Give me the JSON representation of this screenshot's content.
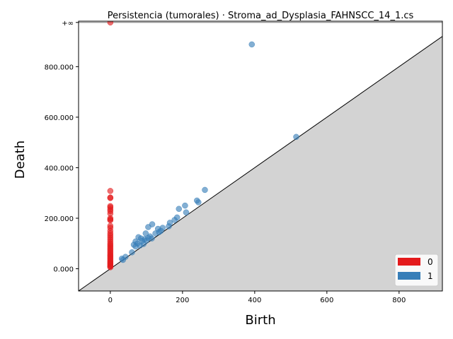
{
  "chart_data": {
    "type": "scatter",
    "title": "Persistencia (tumorales) · Stroma_ad_Dysplasia_FAHNSCC_14_1.cs",
    "xlabel": "Birth",
    "ylabel": "Death",
    "xlim": [
      -88,
      920
    ],
    "ylim": [
      -88,
      980
    ],
    "x_ticks": [
      {
        "value": 0,
        "label": "0"
      },
      {
        "value": 200,
        "label": "200"
      },
      {
        "value": 400,
        "label": "400"
      },
      {
        "value": 600,
        "label": "600"
      },
      {
        "value": 800,
        "label": "800"
      }
    ],
    "y_ticks": [
      {
        "value": 0,
        "label": "0.000"
      },
      {
        "value": 200,
        "label": "200.000"
      },
      {
        "value": 400,
        "label": "400.000"
      },
      {
        "value": 600,
        "label": "600.000"
      },
      {
        "value": 800,
        "label": "800.000"
      },
      {
        "value": 975,
        "label": "+∞"
      }
    ],
    "infinity_line_y": 975,
    "diagonal": true,
    "grid": false,
    "legend_position": "lower-right",
    "series": [
      {
        "name": "0",
        "color": "#e41a1c",
        "points": [
          [
            0,
            975
          ],
          [
            0,
            308
          ],
          [
            0,
            282
          ],
          [
            0,
            280
          ],
          [
            0,
            248
          ],
          [
            0,
            243
          ],
          [
            0,
            235
          ],
          [
            0,
            228
          ],
          [
            0,
            218
          ],
          [
            0,
            200
          ],
          [
            0,
            195
          ],
          [
            0,
            192
          ],
          [
            0,
            170
          ],
          [
            0,
            162
          ],
          [
            0,
            150
          ],
          [
            0,
            140
          ],
          [
            0,
            132
          ],
          [
            0,
            124
          ],
          [
            0,
            116
          ],
          [
            0,
            108
          ],
          [
            0,
            100
          ],
          [
            0,
            94
          ],
          [
            0,
            88
          ],
          [
            0,
            82
          ],
          [
            0,
            76
          ],
          [
            0,
            70
          ],
          [
            0,
            64
          ],
          [
            0,
            58
          ],
          [
            0,
            53
          ],
          [
            0,
            48
          ],
          [
            0,
            43
          ],
          [
            0,
            38
          ],
          [
            0,
            33
          ],
          [
            0,
            28
          ],
          [
            0,
            24
          ],
          [
            0,
            20
          ],
          [
            0,
            16
          ],
          [
            0,
            12
          ],
          [
            0,
            9
          ],
          [
            0,
            6
          ]
        ]
      },
      {
        "name": "1",
        "color": "#377eb8",
        "points": [
          [
            392,
            888
          ],
          [
            515,
            522
          ],
          [
            262,
            312
          ],
          [
            240,
            270
          ],
          [
            244,
            263
          ],
          [
            207,
            250
          ],
          [
            190,
            237
          ],
          [
            210,
            223
          ],
          [
            185,
            203
          ],
          [
            178,
            193
          ],
          [
            165,
            182
          ],
          [
            162,
            168
          ],
          [
            145,
            162
          ],
          [
            132,
            158
          ],
          [
            140,
            150
          ],
          [
            135,
            145
          ],
          [
            116,
            176
          ],
          [
            105,
            165
          ],
          [
            125,
            140
          ],
          [
            98,
            140
          ],
          [
            78,
            125
          ],
          [
            85,
            120
          ],
          [
            95,
            117
          ],
          [
            105,
            122
          ],
          [
            115,
            120
          ],
          [
            70,
            108
          ],
          [
            88,
            110
          ],
          [
            100,
            112
          ],
          [
            75,
            100
          ],
          [
            65,
            95
          ],
          [
            92,
            98
          ],
          [
            82,
            92
          ],
          [
            110,
            128
          ],
          [
            70,
            88
          ],
          [
            60,
            65
          ],
          [
            42,
            47
          ],
          [
            32,
            40
          ],
          [
            35,
            35
          ]
        ]
      }
    ]
  }
}
